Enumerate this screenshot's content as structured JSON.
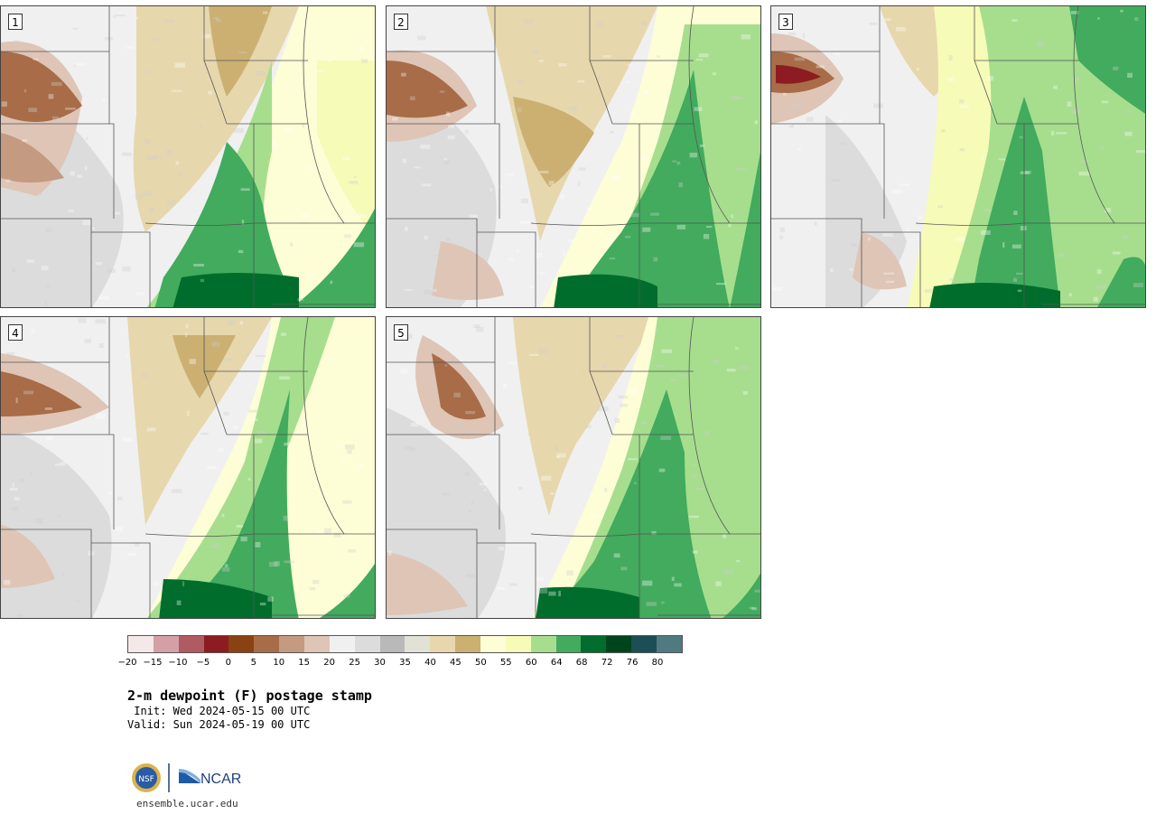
{
  "panels": [
    {
      "label": "1"
    },
    {
      "label": "2"
    },
    {
      "label": "3"
    },
    {
      "label": "4"
    },
    {
      "label": "5"
    }
  ],
  "colorbar": {
    "colors": [
      "#f5e8e8",
      "#d4a0a6",
      "#b05a62",
      "#8c1c22",
      "#8a4212",
      "#a86c48",
      "#c49a80",
      "#dec5b6",
      "#f0f0f0",
      "#dcdcdc",
      "#b9b9b9",
      "#e1e1d6",
      "#e7d7ad",
      "#cbb072",
      "#fdfdd6",
      "#f6fbb7",
      "#a6de8e",
      "#42ab5d",
      "#006d2c",
      "#00441b",
      "#1c4e56",
      "#4e7a80"
    ],
    "tick_labels": [
      "−20",
      "−15",
      "−10",
      "−5",
      "0",
      "5",
      "10",
      "15",
      "20",
      "25",
      "30",
      "35",
      "40",
      "45",
      "50",
      "55",
      "60",
      "64",
      "68",
      "72",
      "76",
      "80"
    ]
  },
  "title": "2-m dewpoint (F) postage stamp",
  "init": " Init: Wed 2024-05-15 00 UTC",
  "valid": "Valid: Sun 2024-05-19 00 UTC",
  "logos": {
    "nsf_text": "NSF",
    "ncar_text": "NCAR"
  },
  "site": "ensemble.ucar.edu"
}
